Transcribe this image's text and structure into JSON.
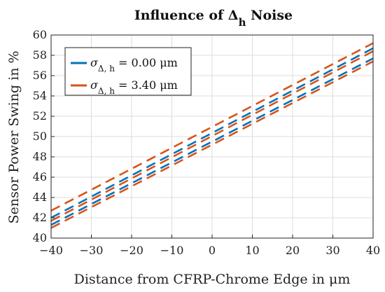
{
  "chart_data": {
    "type": "line",
    "title": "Influence of Δ",
    "title_sub": "h",
    "title_suffix": " Noise",
    "xlabel": "Distance from CFRP-Chrome Edge in μm",
    "ylabel": "Sensor Power Swing in %",
    "xlim": [
      -40,
      40
    ],
    "ylim": [
      40,
      60
    ],
    "xticks": [
      "−40",
      "−30",
      "−20",
      "−10",
      "0",
      "10",
      "20",
      "30",
      "40"
    ],
    "xtick_values": [
      -40,
      -30,
      -20,
      -10,
      0,
      10,
      20,
      30,
      40
    ],
    "yticks": [
      "40",
      "42",
      "44",
      "46",
      "48",
      "50",
      "52",
      "54",
      "56",
      "58",
      "60"
    ],
    "ytick_values": [
      40,
      42,
      44,
      46,
      48,
      50,
      52,
      54,
      56,
      58,
      60
    ],
    "grid": true,
    "legend_position": "top-left",
    "x": [
      -40,
      40
    ],
    "series": [
      {
        "name_symbol": "σ",
        "name_sub": "Δ, h",
        "name_value": " = 0.00 μm",
        "color": "#0072BD",
        "style": "dashed",
        "lines": [
          [
            42.0,
            58.7
          ],
          [
            41.3,
            57.7
          ]
        ]
      },
      {
        "name_symbol": "σ",
        "name_sub": "Δ, h",
        "name_value": " = 3.40 μm",
        "color": "#D95319",
        "style": "dashed",
        "lines": [
          [
            42.7,
            59.2
          ],
          [
            41.7,
            58.4
          ],
          [
            41.0,
            57.4
          ]
        ]
      }
    ]
  }
}
